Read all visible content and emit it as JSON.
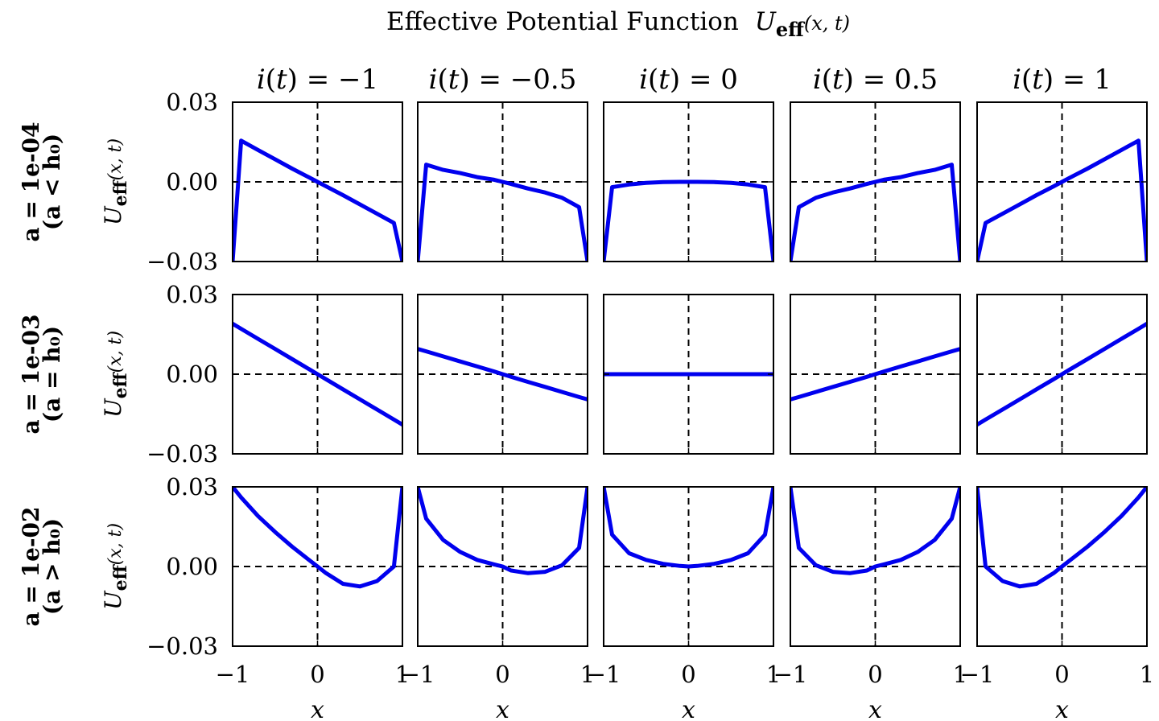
{
  "chart_data": {
    "type": "line",
    "title": "Effective Potential Function",
    "title_math": {
      "base": "U",
      "sub": "eff",
      "args": "(x, t)"
    },
    "column_labels": [
      "i(t) = −1",
      "i(t) = −0.5",
      "i(t) = 0",
      "i(t) = 0.5",
      "i(t) = 1"
    ],
    "row_labels": [
      {
        "line1": "a = 1e-04",
        "line2": "(a < h₀)"
      },
      {
        "line1": "a = 1e-03",
        "line2": "(a = h₀)"
      },
      {
        "line1": "a = 1e-02",
        "line2": "(a > h₀)"
      }
    ],
    "ylabel": "U_eff(x, t)",
    "ylabel_parts": {
      "base": "U",
      "sub": "eff",
      "args": "(x, t)"
    },
    "xlabel": "x",
    "xlim": [
      -1,
      1
    ],
    "ylim": [
      -0.03,
      0.03
    ],
    "xticks": [
      -1,
      0,
      1
    ],
    "xtick_labels": [
      "−1",
      "0",
      "1"
    ],
    "yticks": [
      0.03,
      0.0,
      -0.03
    ],
    "ytick_labels": [
      "0.03",
      "0.00",
      "−0.03"
    ],
    "reference_lines": {
      "x": 0,
      "y": 0,
      "style": "dashed"
    },
    "line_color": "#0000ee",
    "axis_color": "#000000",
    "grid": false,
    "x": [
      -1,
      -0.9,
      -0.7,
      -0.5,
      -0.3,
      -0.1,
      0,
      0.1,
      0.3,
      0.5,
      0.7,
      0.9,
      1
    ],
    "panels": [
      [
        {
          "row": 0,
          "col": 0,
          "y": [
            -0.03,
            0.0155,
            0.012,
            0.0085,
            0.005,
            0.0017,
            0.0,
            -0.0017,
            -0.005,
            -0.0085,
            -0.012,
            -0.0155,
            -0.03
          ]
        },
        {
          "row": 0,
          "col": 1,
          "y": [
            -0.03,
            0.0065,
            0.0045,
            0.0033,
            0.0018,
            0.0008,
            0.0,
            -0.0008,
            -0.0025,
            -0.004,
            -0.006,
            -0.0095,
            -0.03
          ]
        },
        {
          "row": 0,
          "col": 2,
          "y": [
            -0.03,
            -0.002,
            -0.001,
            -0.0004,
            -0.0001,
            0.0,
            0.0,
            0.0,
            -0.0001,
            -0.0004,
            -0.001,
            -0.002,
            -0.03
          ]
        },
        {
          "row": 0,
          "col": 3,
          "y": [
            -0.03,
            -0.0095,
            -0.006,
            -0.004,
            -0.0025,
            -0.0008,
            0.0,
            0.0008,
            0.0018,
            0.0033,
            0.0045,
            0.0065,
            -0.03
          ]
        },
        {
          "row": 0,
          "col": 4,
          "y": [
            -0.03,
            -0.0155,
            -0.012,
            -0.0085,
            -0.005,
            -0.0017,
            0.0,
            0.0017,
            0.005,
            0.0085,
            0.012,
            0.0155,
            -0.03
          ]
        }
      ],
      [
        {
          "row": 1,
          "col": 0,
          "y": [
            0.019,
            0.0171,
            0.0133,
            0.0095,
            0.0057,
            0.0019,
            0.0,
            -0.0019,
            -0.0057,
            -0.0095,
            -0.0133,
            -0.0171,
            -0.019
          ]
        },
        {
          "row": 1,
          "col": 1,
          "y": [
            0.0095,
            0.0086,
            0.0067,
            0.0048,
            0.0029,
            0.001,
            0.0,
            -0.001,
            -0.0029,
            -0.0048,
            -0.0067,
            -0.0086,
            -0.0095
          ]
        },
        {
          "row": 1,
          "col": 2,
          "y": [
            0,
            0,
            0,
            0,
            0,
            0,
            0,
            0,
            0,
            0,
            0,
            0,
            0
          ]
        },
        {
          "row": 1,
          "col": 3,
          "y": [
            -0.0095,
            -0.0086,
            -0.0067,
            -0.0048,
            -0.0029,
            -0.001,
            0.0,
            0.001,
            0.0029,
            0.0048,
            0.0067,
            0.0086,
            0.0095
          ]
        },
        {
          "row": 1,
          "col": 4,
          "y": [
            -0.019,
            -0.0171,
            -0.0133,
            -0.0095,
            -0.0057,
            -0.0019,
            0.0,
            0.0019,
            0.0057,
            0.0095,
            0.0133,
            0.0171,
            0.019
          ]
        }
      ],
      [
        {
          "row": 2,
          "col": 0,
          "y": [
            0.03,
            0.026,
            0.019,
            0.013,
            0.0075,
            0.0025,
            0.0,
            -0.0025,
            -0.0065,
            -0.0075,
            -0.0055,
            0.0,
            0.03
          ]
        },
        {
          "row": 2,
          "col": 1,
          "y": [
            0.03,
            0.018,
            0.01,
            0.0055,
            0.0025,
            0.0008,
            0.0,
            -0.0015,
            -0.0025,
            -0.002,
            0.0005,
            0.007,
            0.03
          ]
        },
        {
          "row": 2,
          "col": 2,
          "y": [
            0.03,
            0.012,
            0.005,
            0.0025,
            0.001,
            0.0002,
            0.0,
            0.0002,
            0.001,
            0.0025,
            0.005,
            0.012,
            0.03
          ]
        },
        {
          "row": 2,
          "col": 3,
          "y": [
            0.03,
            0.007,
            0.0005,
            -0.002,
            -0.0025,
            -0.0015,
            0.0,
            0.0008,
            0.0025,
            0.0055,
            0.01,
            0.018,
            0.03
          ]
        },
        {
          "row": 2,
          "col": 4,
          "y": [
            0.03,
            0.0,
            -0.0055,
            -0.0075,
            -0.0065,
            -0.0025,
            0.0,
            0.0025,
            0.0075,
            0.013,
            0.019,
            0.026,
            0.03
          ]
        }
      ]
    ]
  }
}
